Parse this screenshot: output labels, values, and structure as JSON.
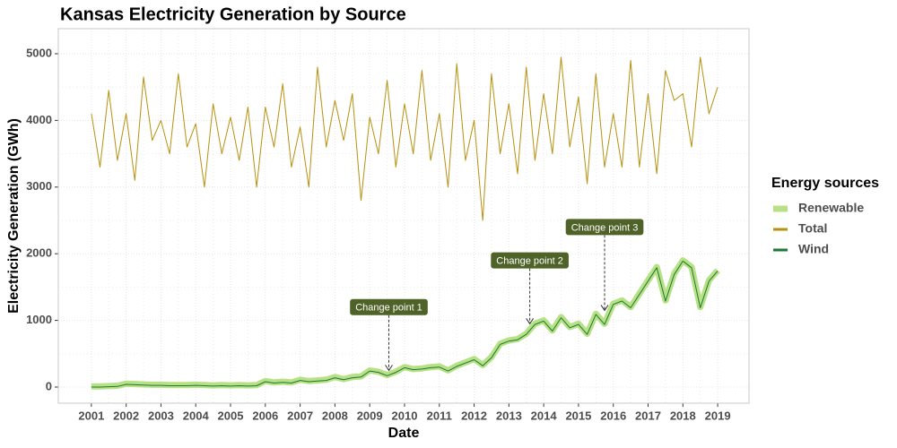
{
  "chart_data": {
    "type": "line",
    "title": "Kansas Electricity Generation by Source",
    "x_label": "Date",
    "y_label": "Electricity Generation (GWh)",
    "legend_title": "Energy sources",
    "legend": "right",
    "grid": true,
    "xlim": [
      2000.05,
      2019.9
    ],
    "xticks": [
      2001,
      2002,
      2003,
      2004,
      2005,
      2006,
      2007,
      2008,
      2009,
      2010,
      2011,
      2012,
      2013,
      2014,
      2015,
      2016,
      2017,
      2018,
      2019
    ],
    "ylim": [
      -242,
      5376
    ],
    "yticks": [
      0,
      1000,
      2000,
      3000,
      4000,
      5000
    ],
    "x": [
      2001,
      2001.25,
      2001.5,
      2001.75,
      2002,
      2002.25,
      2002.5,
      2002.75,
      2003,
      2003.25,
      2003.5,
      2003.75,
      2004,
      2004.25,
      2004.5,
      2004.75,
      2005,
      2005.25,
      2005.5,
      2005.75,
      2006,
      2006.25,
      2006.5,
      2006.75,
      2007,
      2007.25,
      2007.5,
      2007.75,
      2008,
      2008.25,
      2008.5,
      2008.75,
      2009,
      2009.25,
      2009.5,
      2009.75,
      2010,
      2010.25,
      2010.5,
      2010.75,
      2011,
      2011.25,
      2011.5,
      2011.75,
      2012,
      2012.25,
      2012.5,
      2012.75,
      2013,
      2013.25,
      2013.5,
      2013.75,
      2014,
      2014.25,
      2014.5,
      2014.75,
      2015,
      2015.25,
      2015.5,
      2015.75,
      2016,
      2016.25,
      2016.5,
      2016.75,
      2017,
      2017.25,
      2017.5,
      2017.75,
      2018,
      2018.25,
      2018.5,
      2018.75,
      2019
    ],
    "series": [
      {
        "name": "Renewable",
        "color": "#b8e186",
        "line_width": 7,
        "values": [
          10,
          10,
          15,
          20,
          50,
          45,
          40,
          35,
          35,
          30,
          30,
          30,
          35,
          30,
          25,
          30,
          25,
          30,
          25,
          30,
          90,
          70,
          80,
          70,
          110,
          90,
          100,
          110,
          150,
          120,
          150,
          160,
          250,
          230,
          180,
          230,
          300,
          270,
          280,
          300,
          310,
          250,
          320,
          370,
          420,
          330,
          450,
          650,
          700,
          720,
          800,
          950,
          1000,
          850,
          1050,
          900,
          950,
          800,
          1100,
          950,
          1250,
          1300,
          1200,
          1400,
          1600,
          1800,
          1300,
          1700,
          1900,
          1800,
          1200,
          1600,
          1750
        ]
      },
      {
        "name": "Total",
        "color": "#b8900f",
        "line_width": 1,
        "values": [
          4100,
          3300,
          4450,
          3400,
          4100,
          3100,
          4650,
          3700,
          4000,
          3500,
          4700,
          3600,
          3950,
          3000,
          4250,
          3500,
          4050,
          3400,
          4200,
          3000,
          4200,
          3600,
          4550,
          3300,
          3900,
          3000,
          4800,
          3600,
          4300,
          3700,
          4400,
          2800,
          4050,
          3500,
          4600,
          3300,
          4250,
          3500,
          4750,
          3400,
          4100,
          3000,
          4850,
          3400,
          4000,
          2500,
          4700,
          3500,
          4250,
          3200,
          4800,
          3400,
          4400,
          3500,
          4950,
          3600,
          4350,
          3050,
          4700,
          3300,
          4100,
          3300,
          4900,
          3300,
          4400,
          3200,
          4750,
          4300,
          4400,
          3600,
          4950,
          4100,
          4500
        ]
      },
      {
        "name": "Wind",
        "color": "#1b7837",
        "line_width": 1,
        "values": [
          0,
          0,
          5,
          10,
          40,
          35,
          30,
          25,
          25,
          20,
          20,
          20,
          25,
          20,
          15,
          20,
          15,
          20,
          15,
          20,
          80,
          60,
          70,
          60,
          100,
          80,
          90,
          100,
          140,
          110,
          140,
          150,
          240,
          220,
          170,
          220,
          290,
          260,
          270,
          290,
          300,
          240,
          310,
          360,
          410,
          320,
          440,
          640,
          690,
          710,
          790,
          940,
          990,
          840,
          1040,
          890,
          940,
          790,
          1090,
          940,
          1240,
          1290,
          1190,
          1390,
          1590,
          1790,
          1290,
          1690,
          1890,
          1790,
          1190,
          1590,
          1740
        ]
      }
    ],
    "annotations": [
      {
        "label": "Change point 1",
        "x": 2009.55,
        "y": 1200,
        "target": 250
      },
      {
        "label": "Change point 2",
        "x": 2013.6,
        "y": 1900,
        "target": 950
      },
      {
        "label": "Change point 3",
        "x": 2015.75,
        "y": 2400,
        "target": 1150
      }
    ]
  }
}
